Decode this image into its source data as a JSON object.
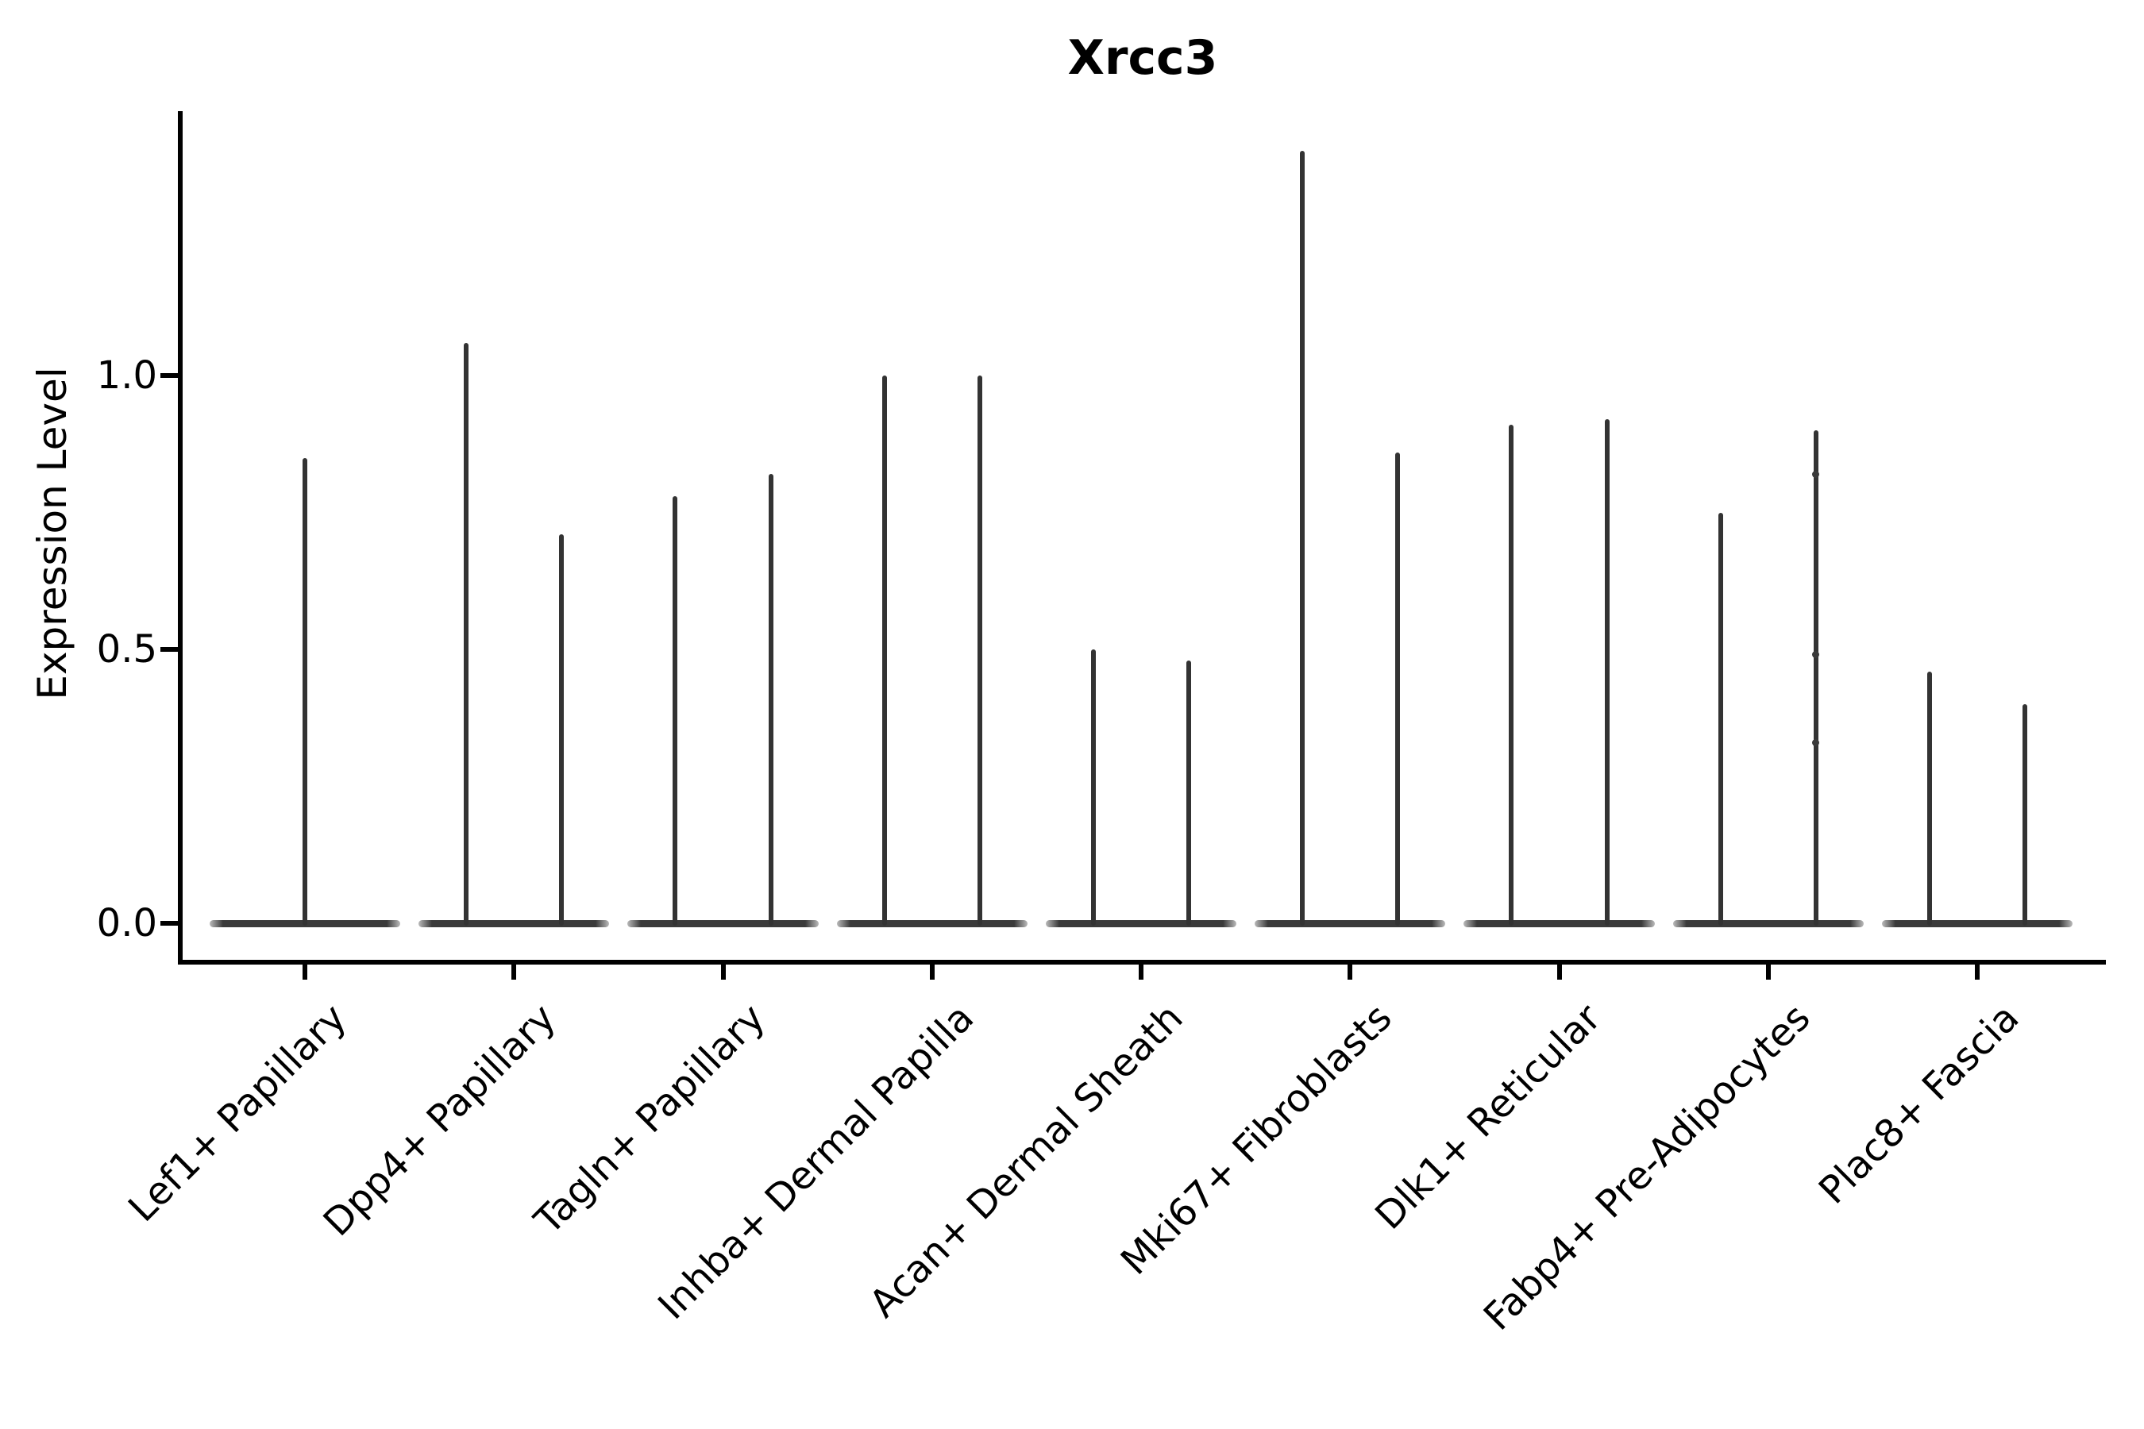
{
  "title": "Xrcc3",
  "chart_data": {
    "type": "violin",
    "title": "Xrcc3",
    "xlabel": "",
    "ylabel": "Expression Level",
    "ylim": [
      -0.07,
      1.48
    ],
    "grid": false,
    "legend": "none",
    "yticks": [
      {
        "label": "0.0",
        "value": 0.0
      },
      {
        "label": "0.5",
        "value": 0.5
      },
      {
        "label": "1.0",
        "value": 1.0
      }
    ],
    "categories": [
      "Lef1+ Papillary",
      "Dpp4+ Papillary",
      "Tagln+ Papillary",
      "Inhba+ Dermal Papilla",
      "Acan+ Dermal Sheath",
      "Mki67+ Fibroblasts",
      "Dlk1+ Reticular",
      "Fabp4+ Pre-Adipocytes",
      "Plac8+ Fascia"
    ],
    "violin_description": "Each violin is flat and wide at expression 0 with a thin vertical spike up to the maximum expression value; offsets are in category-width units relative to the category center",
    "base_half_width": 0.456,
    "violins": [
      {
        "category": "Lef1+ Papillary",
        "spikes": [
          {
            "offset": 0.0,
            "max": 0.85
          }
        ]
      },
      {
        "category": "Dpp4+ Papillary",
        "spikes": [
          {
            "offset": -0.228,
            "max": 1.06
          },
          {
            "offset": 0.228,
            "max": 0.71
          }
        ]
      },
      {
        "category": "Tagln+ Papillary",
        "spikes": [
          {
            "offset": -0.228,
            "max": 0.78
          },
          {
            "offset": 0.228,
            "max": 0.82
          }
        ]
      },
      {
        "category": "Inhba+ Dermal Papilla",
        "spikes": [
          {
            "offset": -0.228,
            "max": 1.0
          },
          {
            "offset": 0.228,
            "max": 1.0
          }
        ]
      },
      {
        "category": "Acan+ Dermal Sheath",
        "spikes": [
          {
            "offset": -0.228,
            "max": 0.5
          },
          {
            "offset": 0.228,
            "max": 0.48
          }
        ]
      },
      {
        "category": "Mki67+ Fibroblasts",
        "spikes": [
          {
            "offset": -0.228,
            "max": 1.41
          },
          {
            "offset": 0.228,
            "max": 0.86
          }
        ]
      },
      {
        "category": "Dlk1+ Reticular",
        "spikes": [
          {
            "offset": -0.228,
            "max": 0.91
          },
          {
            "offset": 0.228,
            "max": 0.92
          }
        ]
      },
      {
        "category": "Fabp4+ Pre-Adipocytes",
        "spikes": [
          {
            "offset": -0.228,
            "max": 0.75
          },
          {
            "offset": 0.228,
            "max": 0.9,
            "bumps": [
              0.82,
              0.49,
              0.33
            ]
          }
        ]
      },
      {
        "category": "Plac8+ Fascia",
        "spikes": [
          {
            "offset": -0.228,
            "max": 0.46
          },
          {
            "offset": 0.228,
            "max": 0.4
          }
        ]
      }
    ],
    "colors": {
      "spike": "#333333",
      "base": "#3a3a3a",
      "axis": "#000000",
      "text": "#000000",
      "background": "#ffffff"
    }
  }
}
